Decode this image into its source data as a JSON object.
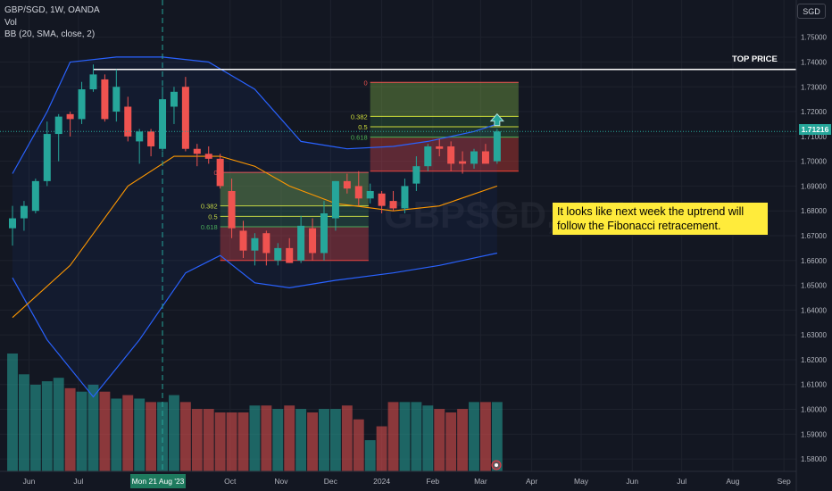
{
  "legend": {
    "symbol_line": "GBP/SGD, 1W, OANDA",
    "vol_line": "Vol",
    "bb_line": "BB (20, SMA, close, 2)"
  },
  "currency_badge": "SGD",
  "current_price_label": "1.71216",
  "top_price_label": "TOP PRICE",
  "annotation_text": "It looks like next week the uptrend will follow the Fibonacci retracement.",
  "crosshair_date_label": "Mon 21 Aug '23",
  "watermark": "GBPSGD, 1W",
  "colors": {
    "background": "#131722",
    "bull": "#26a69a",
    "bear": "#ef5350",
    "bb_band": "#2962ff",
    "bb_basis": "#ff9800",
    "annotation_bg": "#ffeb3b"
  },
  "chart_data": {
    "type": "candlestick",
    "y_axis": {
      "range": [
        1.575,
        1.765
      ],
      "ticks": [
        "1.75000",
        "1.74000",
        "1.73000",
        "1.72000",
        "1.71000",
        "1.70000",
        "1.69000",
        "1.68000",
        "1.67000",
        "1.66000",
        "1.65000",
        "1.64000",
        "1.63000",
        "1.62000",
        "1.61000",
        "1.60000",
        "1.59000",
        "1.58000"
      ]
    },
    "x_axis": {
      "range": [
        "2023-05-22",
        "2024-09-15"
      ],
      "ticks": [
        {
          "label": "Jun",
          "date": "2023-06-01"
        },
        {
          "label": "Jul",
          "date": "2023-07-01"
        },
        {
          "label": "Oct",
          "date": "2023-10-01"
        },
        {
          "label": "Nov",
          "date": "2023-11-01"
        },
        {
          "label": "Dec",
          "date": "2023-12-01"
        },
        {
          "label": "2024",
          "date": "2024-01-01"
        },
        {
          "label": "Feb",
          "date": "2024-02-01"
        },
        {
          "label": "Mar",
          "date": "2024-03-01"
        },
        {
          "label": "Apr",
          "date": "2024-04-01"
        },
        {
          "label": "May",
          "date": "2024-05-01"
        },
        {
          "label": "Jun",
          "date": "2024-06-01"
        },
        {
          "label": "Jul",
          "date": "2024-07-01"
        },
        {
          "label": "Aug",
          "date": "2024-08-01"
        },
        {
          "label": "Sep",
          "date": "2024-09-01"
        }
      ]
    },
    "candles": [
      {
        "date": "2023-05-22",
        "o": 1.673,
        "h": 1.682,
        "l": 1.666,
        "c": 1.677
      },
      {
        "date": "2023-05-29",
        "o": 1.677,
        "h": 1.684,
        "l": 1.672,
        "c": 1.682
      },
      {
        "date": "2023-06-05",
        "o": 1.68,
        "h": 1.693,
        "l": 1.679,
        "c": 1.692
      },
      {
        "date": "2023-06-12",
        "o": 1.692,
        "h": 1.716,
        "l": 1.69,
        "c": 1.711
      },
      {
        "date": "2023-06-19",
        "o": 1.711,
        "h": 1.719,
        "l": 1.7,
        "c": 1.718
      },
      {
        "date": "2023-06-26",
        "o": 1.719,
        "h": 1.72,
        "l": 1.71,
        "c": 1.717
      },
      {
        "date": "2023-07-03",
        "o": 1.717,
        "h": 1.732,
        "l": 1.715,
        "c": 1.729
      },
      {
        "date": "2023-07-10",
        "o": 1.729,
        "h": 1.739,
        "l": 1.728,
        "c": 1.735
      },
      {
        "date": "2023-07-17",
        "o": 1.733,
        "h": 1.735,
        "l": 1.716,
        "c": 1.717
      },
      {
        "date": "2023-07-24",
        "o": 1.72,
        "h": 1.737,
        "l": 1.716,
        "c": 1.73
      },
      {
        "date": "2023-07-31",
        "o": 1.722,
        "h": 1.726,
        "l": 1.708,
        "c": 1.71
      },
      {
        "date": "2023-08-07",
        "o": 1.708,
        "h": 1.713,
        "l": 1.699,
        "c": 1.712
      },
      {
        "date": "2023-08-14",
        "o": 1.712,
        "h": 1.713,
        "l": 1.702,
        "c": 1.706
      },
      {
        "date": "2023-08-21",
        "o": 1.705,
        "h": 1.73,
        "l": 1.704,
        "c": 1.725
      },
      {
        "date": "2023-08-28",
        "o": 1.722,
        "h": 1.73,
        "l": 1.715,
        "c": 1.728
      },
      {
        "date": "2023-09-04",
        "o": 1.73,
        "h": 1.734,
        "l": 1.704,
        "c": 1.705
      },
      {
        "date": "2023-09-11",
        "o": 1.705,
        "h": 1.707,
        "l": 1.698,
        "c": 1.703
      },
      {
        "date": "2023-09-18",
        "o": 1.703,
        "h": 1.706,
        "l": 1.699,
        "c": 1.701
      },
      {
        "date": "2023-09-25",
        "o": 1.701,
        "h": 1.703,
        "l": 1.689,
        "c": 1.69
      },
      {
        "date": "2023-10-02",
        "o": 1.688,
        "h": 1.693,
        "l": 1.669,
        "c": 1.673
      },
      {
        "date": "2023-10-09",
        "o": 1.672,
        "h": 1.676,
        "l": 1.661,
        "c": 1.664
      },
      {
        "date": "2023-10-16",
        "o": 1.664,
        "h": 1.671,
        "l": 1.658,
        "c": 1.669
      },
      {
        "date": "2023-10-23",
        "o": 1.671,
        "h": 1.672,
        "l": 1.658,
        "c": 1.663
      },
      {
        "date": "2023-10-30",
        "o": 1.66,
        "h": 1.667,
        "l": 1.658,
        "c": 1.665
      },
      {
        "date": "2023-11-06",
        "o": 1.665,
        "h": 1.669,
        "l": 1.659,
        "c": 1.659
      },
      {
        "date": "2023-11-13",
        "o": 1.66,
        "h": 1.678,
        "l": 1.659,
        "c": 1.674
      },
      {
        "date": "2023-11-20",
        "o": 1.673,
        "h": 1.677,
        "l": 1.66,
        "c": 1.663
      },
      {
        "date": "2023-11-27",
        "o": 1.663,
        "h": 1.684,
        "l": 1.66,
        "c": 1.679
      },
      {
        "date": "2023-12-04",
        "o": 1.677,
        "h": 1.692,
        "l": 1.672,
        "c": 1.692
      },
      {
        "date": "2023-12-11",
        "o": 1.692,
        "h": 1.695,
        "l": 1.687,
        "c": 1.689
      },
      {
        "date": "2023-12-18",
        "o": 1.69,
        "h": 1.696,
        "l": 1.682,
        "c": 1.685
      },
      {
        "date": "2023-12-25",
        "o": 1.685,
        "h": 1.691,
        "l": 1.683,
        "c": 1.688
      },
      {
        "date": "2024-01-01",
        "o": 1.687,
        "h": 1.688,
        "l": 1.679,
        "c": 1.682
      },
      {
        "date": "2024-01-08",
        "o": 1.684,
        "h": 1.688,
        "l": 1.68,
        "c": 1.681
      },
      {
        "date": "2024-01-15",
        "o": 1.681,
        "h": 1.693,
        "l": 1.679,
        "c": 1.69
      },
      {
        "date": "2024-01-22",
        "o": 1.691,
        "h": 1.702,
        "l": 1.688,
        "c": 1.698
      },
      {
        "date": "2024-01-29",
        "o": 1.698,
        "h": 1.707,
        "l": 1.696,
        "c": 1.706
      },
      {
        "date": "2024-02-05",
        "o": 1.706,
        "h": 1.709,
        "l": 1.702,
        "c": 1.705
      },
      {
        "date": "2024-02-12",
        "o": 1.706,
        "h": 1.708,
        "l": 1.696,
        "c": 1.699
      },
      {
        "date": "2024-02-19",
        "o": 1.7,
        "h": 1.704,
        "l": 1.695,
        "c": 1.699
      },
      {
        "date": "2024-02-26",
        "o": 1.699,
        "h": 1.705,
        "l": 1.697,
        "c": 1.704
      },
      {
        "date": "2024-03-04",
        "o": 1.704,
        "h": 1.707,
        "l": 1.7,
        "c": 1.699
      },
      {
        "date": "2024-03-11",
        "o": 1.7,
        "h": 1.713,
        "l": 1.699,
        "c": 1.712
      }
    ],
    "volume": [
      34,
      28,
      25,
      26,
      27,
      24,
      23,
      25,
      23,
      21,
      22,
      21,
      20,
      20,
      22,
      20,
      18,
      18,
      17,
      17,
      17,
      19,
      19,
      18,
      19,
      18,
      17,
      18,
      18,
      19,
      15,
      9,
      13,
      20,
      20,
      20,
      19,
      18,
      17,
      18,
      20,
      20,
      20
    ],
    "bollinger": {
      "upper": [
        {
          "date": "2023-05-22",
          "v": 1.695
        },
        {
          "date": "2023-06-12",
          "v": 1.72
        },
        {
          "date": "2023-06-26",
          "v": 1.74
        },
        {
          "date": "2023-07-24",
          "v": 1.742
        },
        {
          "date": "2023-08-21",
          "v": 1.742
        },
        {
          "date": "2023-09-18",
          "v": 1.74
        },
        {
          "date": "2023-10-16",
          "v": 1.729
        },
        {
          "date": "2023-11-13",
          "v": 1.708
        },
        {
          "date": "2023-12-11",
          "v": 1.705
        },
        {
          "date": "2024-01-08",
          "v": 1.706
        },
        {
          "date": "2024-01-29",
          "v": 1.708
        },
        {
          "date": "2024-02-26",
          "v": 1.712
        },
        {
          "date": "2024-03-11",
          "v": 1.715
        }
      ],
      "lower": [
        {
          "date": "2023-05-22",
          "v": 1.653
        },
        {
          "date": "2023-06-12",
          "v": 1.628
        },
        {
          "date": "2023-07-10",
          "v": 1.605
        },
        {
          "date": "2023-08-07",
          "v": 1.628
        },
        {
          "date": "2023-09-04",
          "v": 1.655
        },
        {
          "date": "2023-09-25",
          "v": 1.662
        },
        {
          "date": "2023-10-16",
          "v": 1.651
        },
        {
          "date": "2023-11-06",
          "v": 1.649
        },
        {
          "date": "2023-12-04",
          "v": 1.652
        },
        {
          "date": "2024-01-08",
          "v": 1.655
        },
        {
          "date": "2024-02-05",
          "v": 1.658
        },
        {
          "date": "2024-03-11",
          "v": 1.663
        }
      ],
      "basis": [
        {
          "date": "2023-05-22",
          "v": 1.637
        },
        {
          "date": "2023-06-26",
          "v": 1.658
        },
        {
          "date": "2023-07-31",
          "v": 1.69
        },
        {
          "date": "2023-08-28",
          "v": 1.702
        },
        {
          "date": "2023-09-25",
          "v": 1.702
        },
        {
          "date": "2023-10-16",
          "v": 1.698
        },
        {
          "date": "2023-11-06",
          "v": 1.69
        },
        {
          "date": "2023-12-04",
          "v": 1.683
        },
        {
          "date": "2024-01-08",
          "v": 1.68
        },
        {
          "date": "2024-02-05",
          "v": 1.682
        },
        {
          "date": "2024-03-11",
          "v": 1.69
        }
      ]
    },
    "top_price_level": 1.737,
    "crosshair_date": "2023-08-21",
    "fib_retracements": [
      {
        "start_date": "2023-09-25",
        "end_date": "2023-12-24",
        "level_0_price": 1.6955,
        "level_1_price": 1.66,
        "levels": [
          {
            "label": "0",
            "price": 1.6955
          },
          {
            "label": "0.382",
            "price": 1.682
          },
          {
            "label": "0.5",
            "price": 1.6778
          },
          {
            "label": "0.618",
            "price": 1.6736
          }
        ]
      },
      {
        "start_date": "2023-12-25",
        "end_date": "2024-03-24",
        "level_0_price": 1.7318,
        "level_1_price": 1.696,
        "levels": [
          {
            "label": "0",
            "price": 1.7318
          },
          {
            "label": "0.382",
            "price": 1.7181
          },
          {
            "label": "0.5",
            "price": 1.7139
          },
          {
            "label": "0.618",
            "price": 1.7097
          }
        ]
      }
    ],
    "forecast_arrow": {
      "date": "2024-03-11",
      "price": 1.718
    }
  }
}
